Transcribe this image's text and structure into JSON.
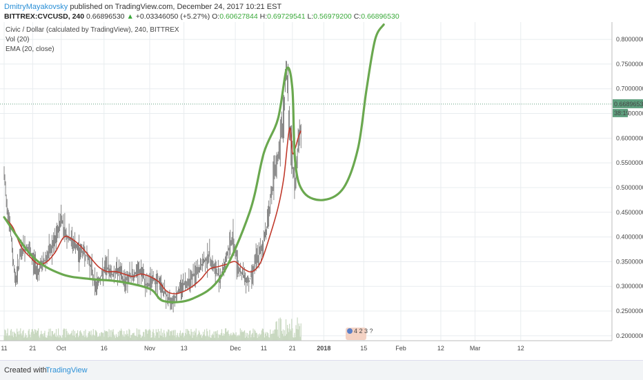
{
  "header": {
    "author": "DmitryMayakovsky",
    "published": "published on TradingView.com, December 24, 2017 10:21 EST",
    "symbol": "BITTREX:CVCUSD, 240",
    "last": "0.66896530",
    "change": "+0.03346050 (+5.27%)",
    "o_label": "O:",
    "o": "0.60627844",
    "h_label": "H:",
    "h": "0.69729541",
    "l_label": "L:",
    "l": "0.56979200",
    "c_label": "C:",
    "c": "0.66896530"
  },
  "footer": {
    "created": "Created with",
    "brand": "TradingView"
  },
  "chart_data": {
    "type": "candlestick",
    "legend": [
      "Civic / Dollar (calculated by TradingView), 240, BITTREX",
      "Vol (20)",
      "EMA (20, close)"
    ],
    "y_ticks": [
      "0.80000000",
      "0.75000000",
      "0.70000000",
      "0.65000000",
      "0.60000000",
      "0.55000000",
      "0.50000000",
      "0.45000000",
      "0.40000000",
      "0.35000000",
      "0.30000000",
      "0.25000000",
      "0.20000000"
    ],
    "ylim": [
      0.19,
      0.835
    ],
    "x_ticks": [
      "11",
      "21",
      "Oct",
      "16",
      "Nov",
      "13",
      "Dec",
      "11",
      "21",
      "2018",
      "15",
      "Feb",
      "12",
      "Mar",
      "12"
    ],
    "last_price_label": "0.66896530",
    "last_price": 0.669,
    "countdown_label": "38:19",
    "price_series": [
      {
        "t": "Sep 11",
        "v": 0.52
      },
      {
        "t": "Sep 13",
        "v": 0.42
      },
      {
        "t": "Sep 15",
        "v": 0.31
      },
      {
        "t": "Sep 17",
        "v": 0.37
      },
      {
        "t": "Sep 19",
        "v": 0.38
      },
      {
        "t": "Sep 21",
        "v": 0.355
      },
      {
        "t": "Sep 23",
        "v": 0.33
      },
      {
        "t": "Sep 25",
        "v": 0.35
      },
      {
        "t": "Sep 27",
        "v": 0.37
      },
      {
        "t": "Sep 29",
        "v": 0.39
      },
      {
        "t": "Oct 1",
        "v": 0.44
      },
      {
        "t": "Oct 3",
        "v": 0.4
      },
      {
        "t": "Oct 5",
        "v": 0.39
      },
      {
        "t": "Oct 7",
        "v": 0.37
      },
      {
        "t": "Oct 9",
        "v": 0.37
      },
      {
        "t": "Oct 11",
        "v": 0.35
      },
      {
        "t": "Oct 13",
        "v": 0.3
      },
      {
        "t": "Oct 15",
        "v": 0.32
      },
      {
        "t": "Oct 17",
        "v": 0.34
      },
      {
        "t": "Oct 19",
        "v": 0.325
      },
      {
        "t": "Oct 21",
        "v": 0.335
      },
      {
        "t": "Oct 23",
        "v": 0.31
      },
      {
        "t": "Oct 25",
        "v": 0.32
      },
      {
        "t": "Oct 27",
        "v": 0.325
      },
      {
        "t": "Oct 29",
        "v": 0.33
      },
      {
        "t": "Oct 31",
        "v": 0.3
      },
      {
        "t": "Nov 2",
        "v": 0.315
      },
      {
        "t": "Nov 4",
        "v": 0.31
      },
      {
        "t": "Nov 6",
        "v": 0.29
      },
      {
        "t": "Nov 8",
        "v": 0.27
      },
      {
        "t": "Nov 10",
        "v": 0.28
      },
      {
        "t": "Nov 12",
        "v": 0.3
      },
      {
        "t": "Nov 14",
        "v": 0.31
      },
      {
        "t": "Nov 16",
        "v": 0.32
      },
      {
        "t": "Nov 18",
        "v": 0.33
      },
      {
        "t": "Nov 20",
        "v": 0.35
      },
      {
        "t": "Nov 22",
        "v": 0.36
      },
      {
        "t": "Nov 24",
        "v": 0.33
      },
      {
        "t": "Nov 26",
        "v": 0.32
      },
      {
        "t": "Nov 28",
        "v": 0.36
      },
      {
        "t": "Nov 30",
        "v": 0.4
      },
      {
        "t": "Dec 2",
        "v": 0.34
      },
      {
        "t": "Dec 4",
        "v": 0.32
      },
      {
        "t": "Dec 6",
        "v": 0.31
      },
      {
        "t": "Dec 8",
        "v": 0.35
      },
      {
        "t": "Dec 10",
        "v": 0.37
      },
      {
        "t": "Dec 12",
        "v": 0.42
      },
      {
        "t": "Dec 14",
        "v": 0.5
      },
      {
        "t": "Dec 16",
        "v": 0.56
      },
      {
        "t": "Dec 18",
        "v": 0.65
      },
      {
        "t": "Dec 19",
        "v": 0.75
      },
      {
        "t": "Dec 20",
        "v": 0.62
      },
      {
        "t": "Dec 21",
        "v": 0.55
      },
      {
        "t": "Dec 22",
        "v": 0.5
      },
      {
        "t": "Dec 23",
        "v": 0.6
      },
      {
        "t": "Dec 24",
        "v": 0.62
      }
    ],
    "ema_series": [
      {
        "t": "Sep 11",
        "v": 0.44
      },
      {
        "t": "Sep 14",
        "v": 0.42
      },
      {
        "t": "Sep 17",
        "v": 0.38
      },
      {
        "t": "Sep 20",
        "v": 0.36
      },
      {
        "t": "Sep 23",
        "v": 0.345
      },
      {
        "t": "Sep 26",
        "v": 0.35
      },
      {
        "t": "Sep 29",
        "v": 0.37
      },
      {
        "t": "Oct 2",
        "v": 0.4
      },
      {
        "t": "Oct 5",
        "v": 0.395
      },
      {
        "t": "Oct 8",
        "v": 0.38
      },
      {
        "t": "Oct 11",
        "v": 0.36
      },
      {
        "t": "Oct 14",
        "v": 0.34
      },
      {
        "t": "Oct 17",
        "v": 0.33
      },
      {
        "t": "Oct 20",
        "v": 0.33
      },
      {
        "t": "Oct 23",
        "v": 0.325
      },
      {
        "t": "Oct 26",
        "v": 0.32
      },
      {
        "t": "Oct 29",
        "v": 0.325
      },
      {
        "t": "Nov 1",
        "v": 0.32
      },
      {
        "t": "Nov 4",
        "v": 0.31
      },
      {
        "t": "Nov 7",
        "v": 0.29
      },
      {
        "t": "Nov 10",
        "v": 0.285
      },
      {
        "t": "Nov 13",
        "v": 0.29
      },
      {
        "t": "Nov 16",
        "v": 0.3
      },
      {
        "t": "Nov 19",
        "v": 0.315
      },
      {
        "t": "Nov 22",
        "v": 0.335
      },
      {
        "t": "Nov 25",
        "v": 0.34
      },
      {
        "t": "Nov 28",
        "v": 0.345
      },
      {
        "t": "Dec 1",
        "v": 0.35
      },
      {
        "t": "Dec 4",
        "v": 0.335
      },
      {
        "t": "Dec 7",
        "v": 0.33
      },
      {
        "t": "Dec 10",
        "v": 0.35
      },
      {
        "t": "Dec 13",
        "v": 0.4
      },
      {
        "t": "Dec 16",
        "v": 0.46
      },
      {
        "t": "Dec 18",
        "v": 0.52
      },
      {
        "t": "Dec 20",
        "v": 0.62
      },
      {
        "t": "Dec 21",
        "v": 0.57
      },
      {
        "t": "Dec 22",
        "v": 0.58
      },
      {
        "t": "Dec 23",
        "v": 0.6
      },
      {
        "t": "Dec 24",
        "v": 0.615
      }
    ],
    "drawn_curve": [
      {
        "t": "Sep 11",
        "v": 0.44
      },
      {
        "t": "Sep 21",
        "v": 0.36
      },
      {
        "t": "Oct 1",
        "v": 0.325
      },
      {
        "t": "Oct 11",
        "v": 0.315
      },
      {
        "t": "Oct 21",
        "v": 0.31
      },
      {
        "t": "Nov 1",
        "v": 0.295
      },
      {
        "t": "Nov 6",
        "v": 0.27
      },
      {
        "t": "Nov 16",
        "v": 0.275
      },
      {
        "t": "Nov 26",
        "v": 0.32
      },
      {
        "t": "Dec 6",
        "v": 0.45
      },
      {
        "t": "Dec 11",
        "v": 0.57
      },
      {
        "t": "Dec 16",
        "v": 0.64
      },
      {
        "t": "Dec 19",
        "v": 0.74
      },
      {
        "t": "Dec 21",
        "v": 0.7
      },
      {
        "t": "Dec 22",
        "v": 0.55
      },
      {
        "t": "Dec 25",
        "v": 0.49
      },
      {
        "t": "Jan 1",
        "v": 0.475
      },
      {
        "t": "Jan 8",
        "v": 0.5
      },
      {
        "t": "Jan 13",
        "v": 0.58
      },
      {
        "t": "Jan 16",
        "v": 0.7
      },
      {
        "t": "Jan 19",
        "v": 0.8
      },
      {
        "t": "Jan 22",
        "v": 0.83
      }
    ],
    "colors": {
      "ema": "#c0392b",
      "drawn_curve": "#6aa84f",
      "candles": "#555555",
      "volume": "#c8d8c0",
      "grid": "#e8ecef",
      "last_price": "#5e9f7e"
    },
    "grid": true
  }
}
